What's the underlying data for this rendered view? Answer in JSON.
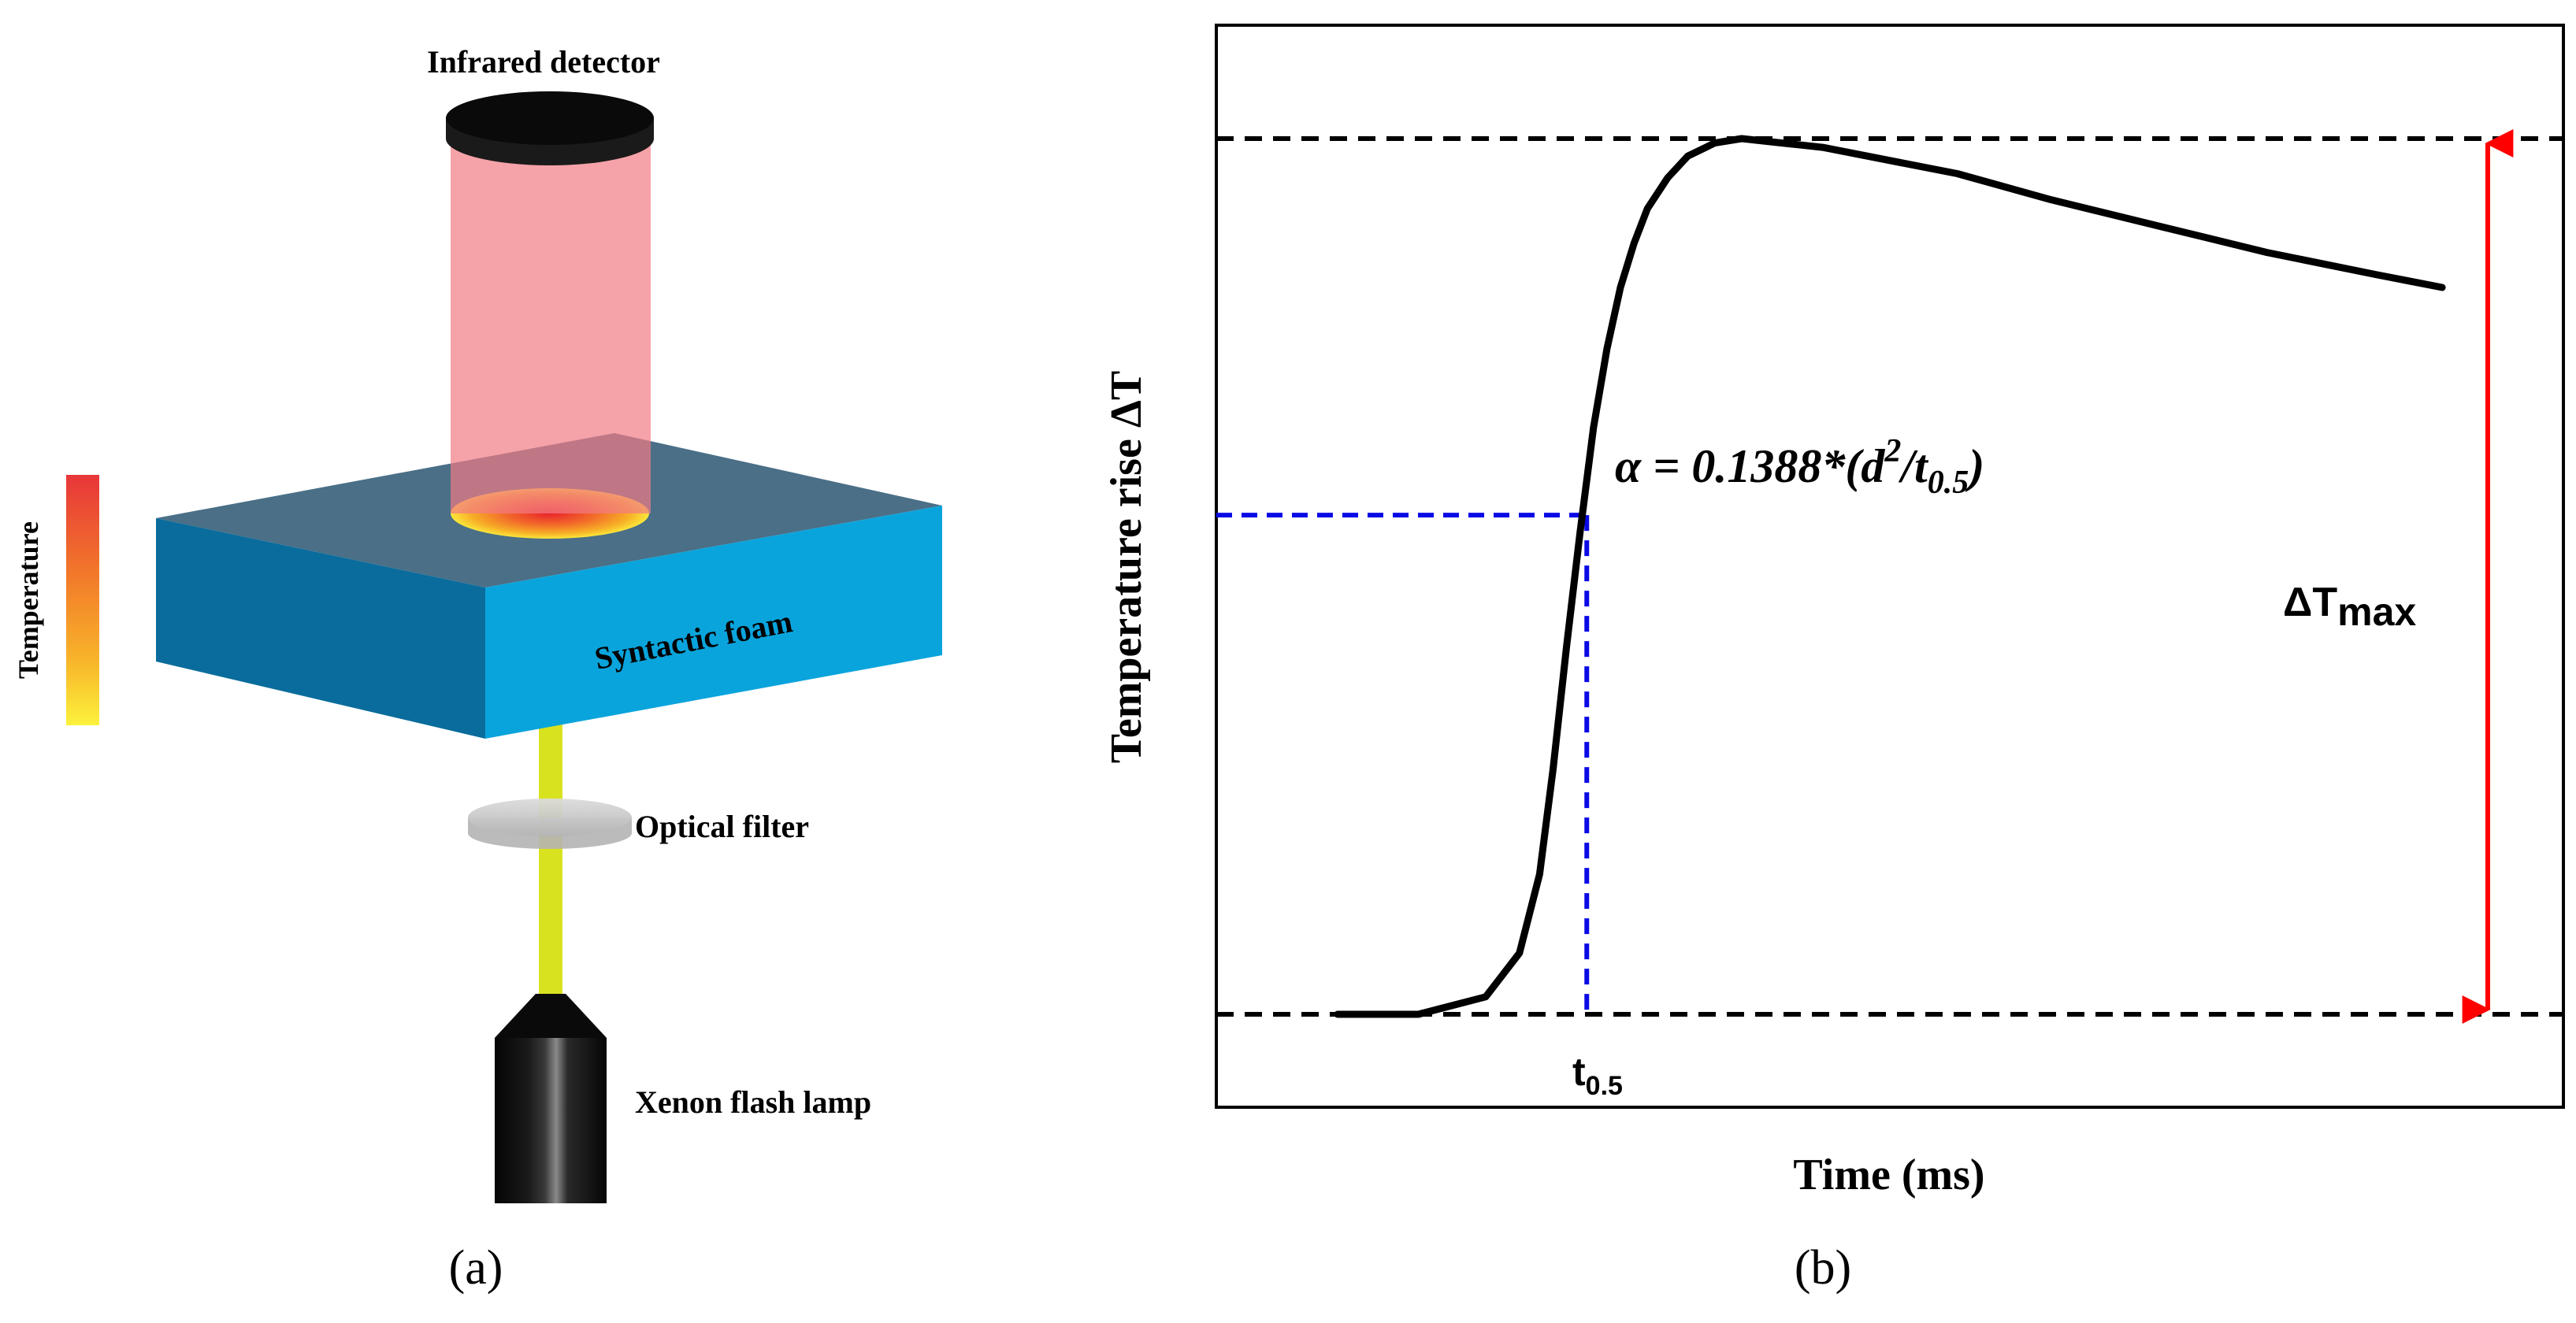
{
  "panel_a": {
    "label": "(a)",
    "detector_label": "Infrared detector",
    "sample_label": "Syntactic foam",
    "filter_label": "Optical filter",
    "lamp_label": "Xenon flash lamp",
    "colorbar_label": "Temperature",
    "colors": {
      "foam_top": "#4a6f87",
      "foam_front": "#0aa4dc",
      "foam_side": "#0a6c9c",
      "ir_beam": "#f59aa0",
      "flash_beam": "#d9e21f",
      "lamp": "#111111",
      "filter": "#c8c8c8"
    },
    "icons": [
      "infrared-detector-icon",
      "syntactic-foam-block-icon",
      "optical-filter-icon",
      "xenon-flash-lamp-icon"
    ]
  },
  "panel_b": {
    "label": "(b)",
    "xlabel": "Time (ms)",
    "ylabel": "Temperature rise ΔT",
    "equation": {
      "lhs": "α = 0.1388*(d",
      "exponent": "2",
      "mid": "/t",
      "subscript": "0.5",
      "end": ")"
    },
    "half_time": {
      "base": "t",
      "sub": "0.5"
    },
    "dt_max": {
      "base": "ΔT",
      "sub": "max"
    },
    "colors": {
      "curve": "#000000",
      "reference_lines": "#000000",
      "half_lines": "#0a0ae6",
      "arrow": "#ff0000"
    }
  },
  "chart_data": {
    "type": "line",
    "title": "",
    "xlabel": "Time (ms)",
    "ylabel": "Temperature rise ΔT",
    "xlim": [
      0,
      1
    ],
    "ylim": [
      0,
      1
    ],
    "grid": false,
    "series": [
      {
        "x": [
          0.09,
          0.15,
          0.2,
          0.225,
          0.24,
          0.25,
          0.26,
          0.27,
          0.28,
          0.29,
          0.3,
          0.31,
          0.32,
          0.335,
          0.35,
          0.37,
          0.39,
          0.42,
          0.45,
          0.5,
          0.55,
          0.62,
          0.7,
          0.78,
          0.86,
          0.91
        ],
        "y": [
          0.0,
          0.0,
          0.02,
          0.07,
          0.16,
          0.28,
          0.42,
          0.55,
          0.67,
          0.76,
          0.83,
          0.88,
          0.92,
          0.955,
          0.98,
          0.995,
          1.0,
          0.995,
          0.99,
          0.975,
          0.96,
          0.93,
          0.9,
          0.87,
          0.845,
          0.83
        ]
      }
    ],
    "reference_levels": {
      "baseline": 0.0,
      "max": 1.0,
      "half": 0.57
    },
    "t_half": 0.275
  }
}
